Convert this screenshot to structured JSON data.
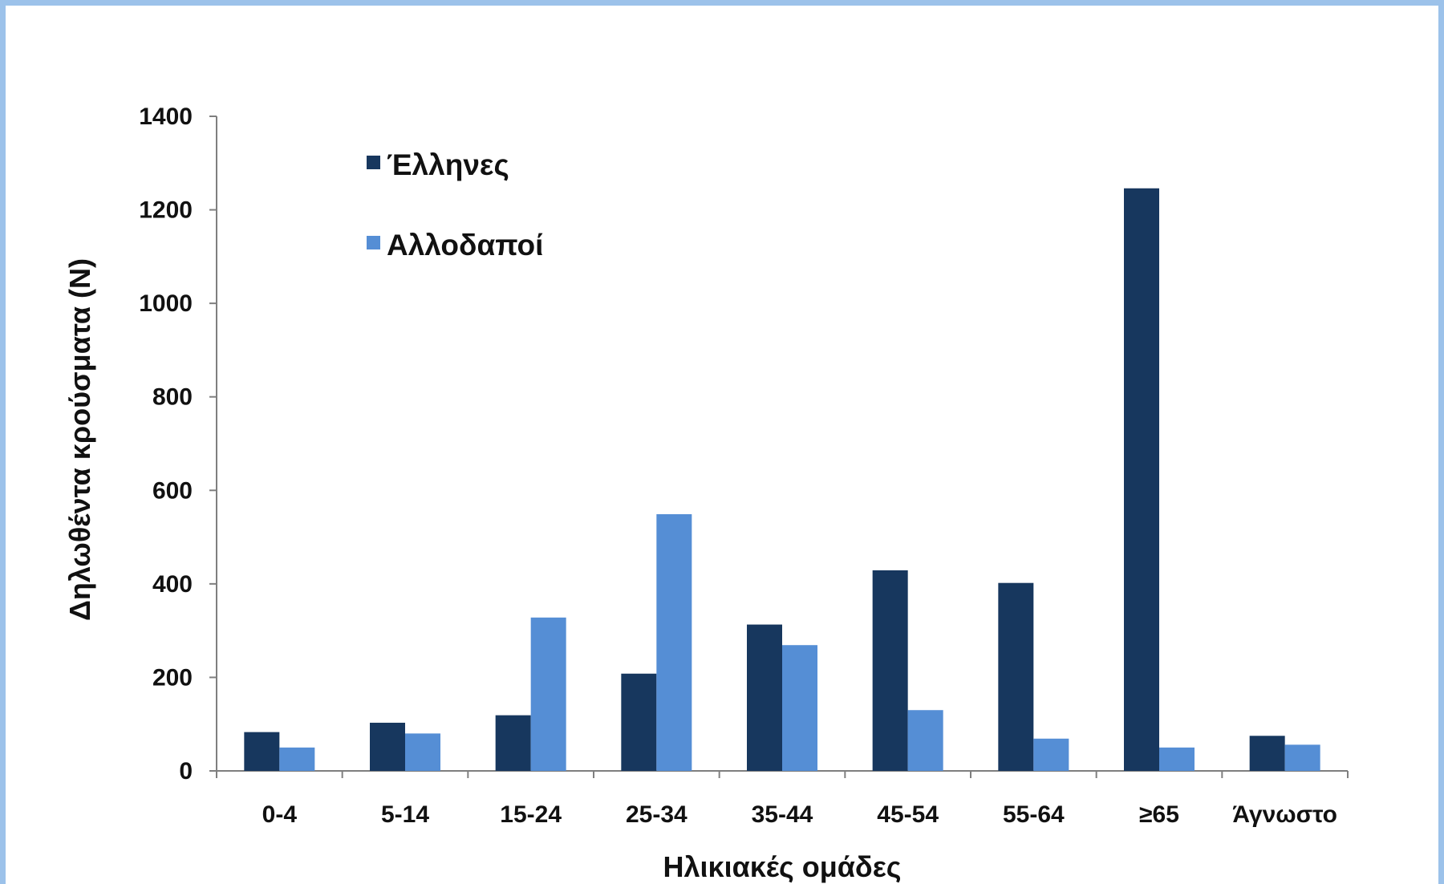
{
  "chart_data": {
    "type": "bar",
    "title": "",
    "xlabel": "Ηλικιακές ομάδες",
    "ylabel": "Δηλωθέντα κρούσματα (N)",
    "ylim": [
      0,
      1400
    ],
    "yticks": [
      0,
      200,
      400,
      600,
      800,
      1000,
      1200,
      1400
    ],
    "categories": [
      "0-4",
      "5-14",
      "15-24",
      "25-34",
      "35-44",
      "45-54",
      "55-64",
      "≥65",
      "Άγνωστο"
    ],
    "series": [
      {
        "name": "Έλληνες",
        "color": "#17375e",
        "values": [
          83,
          103,
          119,
          208,
          313,
          429,
          402,
          1246,
          75
        ]
      },
      {
        "name": "Αλλοδαποί",
        "color": "#558ed5",
        "values": [
          50,
          80,
          328,
          549,
          269,
          130,
          69,
          50,
          56
        ]
      }
    ],
    "grid": false,
    "legend": "top-left"
  }
}
